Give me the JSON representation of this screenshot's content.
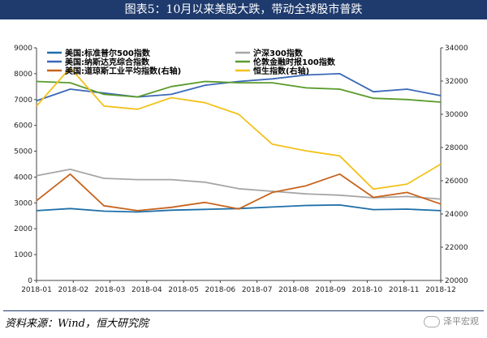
{
  "title": "图表5：10月以来美股大跌，带动全球股市普跌",
  "footer": {
    "source": "资料来源：Wind，恒大研究院"
  },
  "watermark": {
    "text": "泽平宏观"
  },
  "chart_data": {
    "type": "line",
    "legend": [
      {
        "name": "美国:标准普尔500指数",
        "color": "#1e6fa8"
      },
      {
        "name": "美国:纳斯达克综合指数",
        "color": "#3a68b8"
      },
      {
        "name": "美国:道琼斯工业平均指数(右轴)",
        "color": "#c8631d"
      },
      {
        "name": "沪深300指数",
        "color": "#a6a6a6"
      },
      {
        "name": "伦敦金融时报100指数",
        "color": "#5a9a2a"
      },
      {
        "name": "恒生指数(右轴)",
        "color": "#f2c21b"
      }
    ],
    "x_ticks": [
      "2018-01",
      "2018-02",
      "2018-03",
      "2018-04",
      "2018-05",
      "2018-06",
      "2018-07",
      "2018-08",
      "2018-09",
      "2018-10",
      "2018-11",
      "2018-12"
    ],
    "y_left": {
      "min": 0,
      "max": 9000,
      "ticks": [
        0,
        1000,
        2000,
        3000,
        4000,
        5000,
        6000,
        7000,
        8000,
        9000
      ]
    },
    "y_right": {
      "min": 20000,
      "max": 34000,
      "ticks": [
        20000,
        22000,
        24000,
        26000,
        28000,
        30000,
        32000,
        34000
      ]
    },
    "series": [
      {
        "name": "美国:标准普尔500指数",
        "axis": "left",
        "color": "#1e6fa8",
        "values": [
          2700,
          2780,
          2680,
          2650,
          2720,
          2750,
          2780,
          2840,
          2900,
          2920,
          2740,
          2760,
          2700
        ]
      },
      {
        "name": "美国:纳斯达克综合指数",
        "axis": "left",
        "color": "#3a68b8",
        "values": [
          6950,
          7400,
          7250,
          7100,
          7200,
          7550,
          7700,
          7800,
          7950,
          8000,
          7300,
          7400,
          7150
        ]
      },
      {
        "name": "沪深300指数",
        "axis": "left",
        "color": "#a6a6a6",
        "values": [
          4050,
          4300,
          3950,
          3900,
          3900,
          3800,
          3550,
          3450,
          3350,
          3300,
          3200,
          3250,
          3150
        ]
      },
      {
        "name": "伦敦金融时报100指数",
        "axis": "left",
        "color": "#5a9a2a",
        "values": [
          7700,
          7650,
          7200,
          7100,
          7500,
          7700,
          7650,
          7650,
          7450,
          7400,
          7050,
          7000,
          6900
        ]
      },
      {
        "name": "美国:道琼斯工业平均指数(右轴)",
        "axis": "right",
        "color": "#c8631d",
        "values": [
          24800,
          26400,
          24500,
          24200,
          24400,
          24700,
          24300,
          25300,
          25700,
          26400,
          25000,
          25300,
          24600
        ]
      },
      {
        "name": "恒生指数(右轴)",
        "axis": "right",
        "color": "#f2c21b",
        "values": [
          30500,
          32800,
          30500,
          30300,
          31000,
          30700,
          30000,
          28200,
          27800,
          27500,
          25500,
          25800,
          27000
        ]
      }
    ],
    "grid": false,
    "legend_position": "top"
  }
}
